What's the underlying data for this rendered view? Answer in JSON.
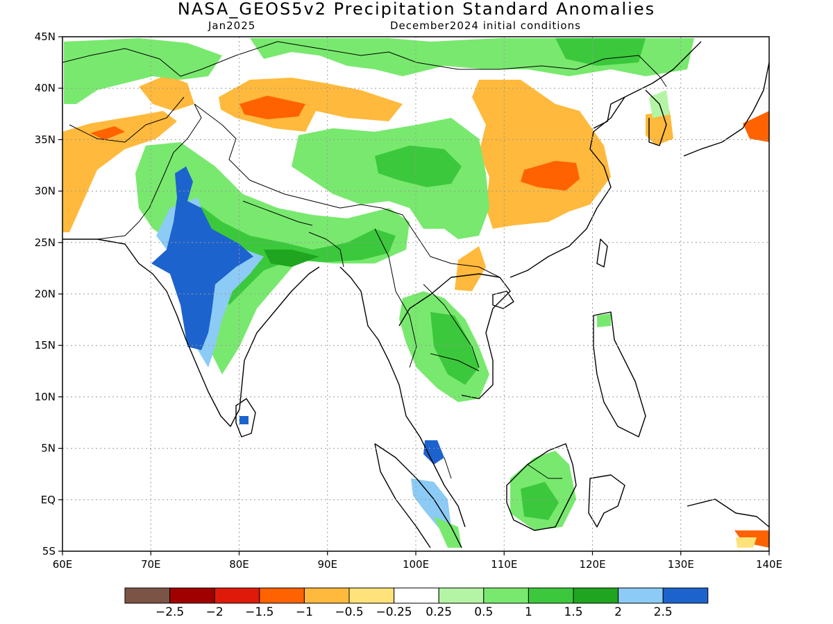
{
  "title": "NASA_GEOS5v2 Precipitation Standard Anomalies",
  "subtitle_left": "Jan2025",
  "subtitle_right": "December2024 initial conditions",
  "lat_ticks": [
    "45N",
    "40N",
    "35N",
    "30N",
    "25N",
    "20N",
    "15N",
    "10N",
    "5N",
    "EQ",
    "5S"
  ],
  "lon_ticks": [
    "60E",
    "70E",
    "80E",
    "90E",
    "100E",
    "110E",
    "120E",
    "130E",
    "140E"
  ],
  "colorbar": {
    "colors": [
      "#7b5446",
      "#a00000",
      "#e01a0a",
      "#ff6200",
      "#ffb93c",
      "#ffe37a",
      "#ffffff",
      "#b4f5a5",
      "#78e96e",
      "#3cc83c",
      "#1fa51f",
      "#8ccbf5",
      "#1d63cd"
    ],
    "labels": [
      "−2.5",
      "−2",
      "−1.5",
      "−1",
      "−0.5",
      "−0.25",
      "0.25",
      "0.5",
      "1",
      "1.5",
      "2",
      "2.5"
    ]
  },
  "colors": {
    "coast": "#000000",
    "grid": "#9a9a9a"
  }
}
